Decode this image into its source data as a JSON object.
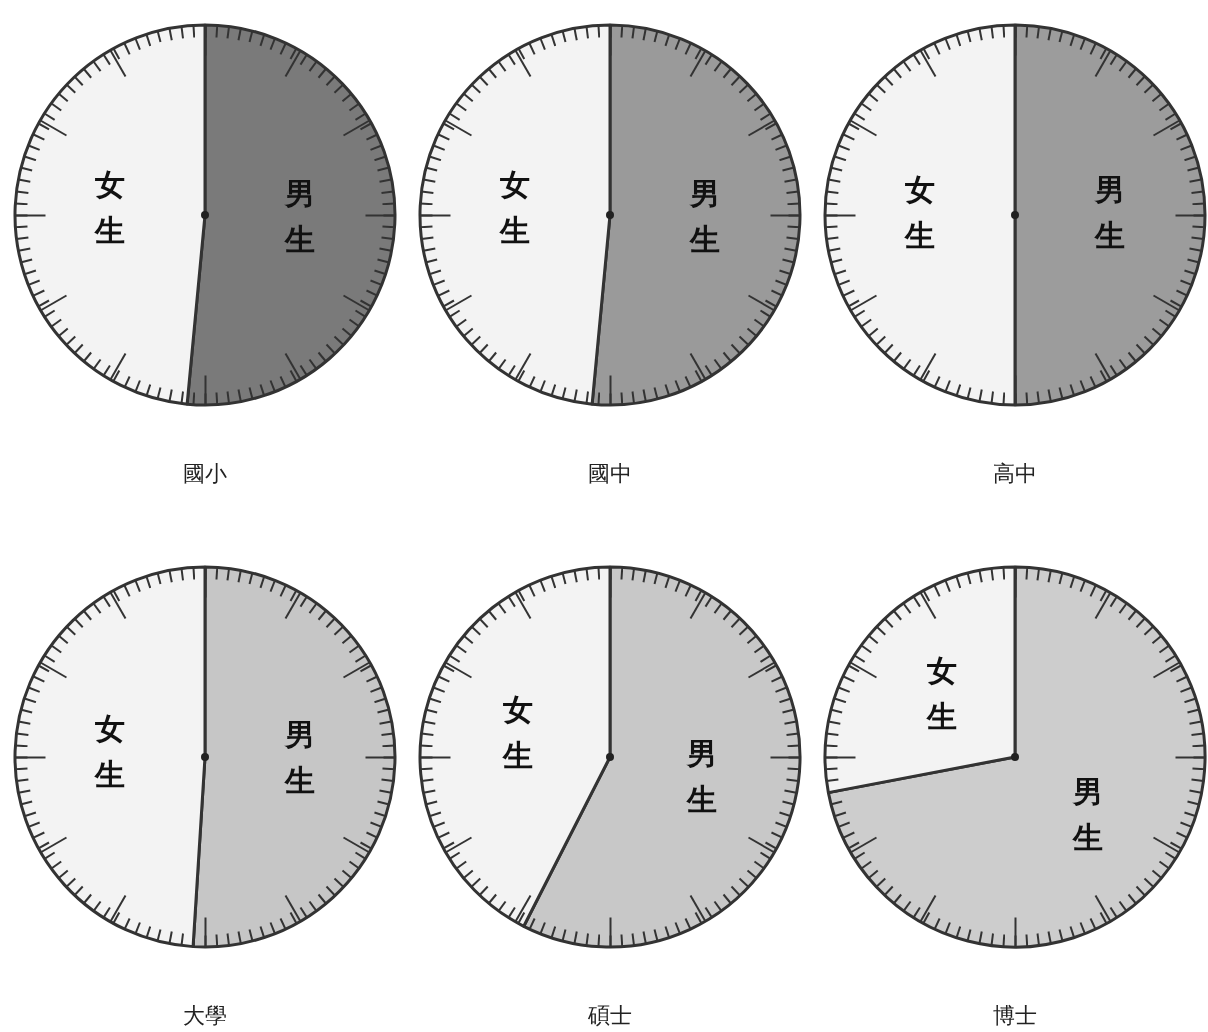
{
  "chart_data": [
    {
      "type": "pie",
      "title": "國小",
      "categories": [
        "男生",
        "女生"
      ],
      "values": [
        51.5,
        48.5
      ],
      "colors": [
        "#7a7a7a",
        "#f3f3f3"
      ]
    },
    {
      "type": "pie",
      "title": "國中",
      "categories": [
        "男生",
        "女生"
      ],
      "values": [
        51.5,
        48.5
      ],
      "colors": [
        "#9a9a9a",
        "#f3f3f3"
      ]
    },
    {
      "type": "pie",
      "title": "高中",
      "categories": [
        "男生",
        "女生"
      ],
      "values": [
        50,
        50
      ],
      "colors": [
        "#9c9c9c",
        "#f3f3f3"
      ]
    },
    {
      "type": "pie",
      "title": "大學",
      "categories": [
        "男生",
        "女生"
      ],
      "values": [
        51,
        49
      ],
      "colors": [
        "#c6c6c6",
        "#f3f3f3"
      ]
    },
    {
      "type": "pie",
      "title": "碩士",
      "categories": [
        "男生",
        "女生"
      ],
      "values": [
        57.5,
        42.5
      ],
      "colors": [
        "#c8c8c8",
        "#f3f3f3"
      ]
    },
    {
      "type": "pie",
      "title": "博士",
      "categories": [
        "男生",
        "女生"
      ],
      "values": [
        72,
        28
      ],
      "colors": [
        "#cdcdcd",
        "#f3f3f3"
      ]
    }
  ]
}
